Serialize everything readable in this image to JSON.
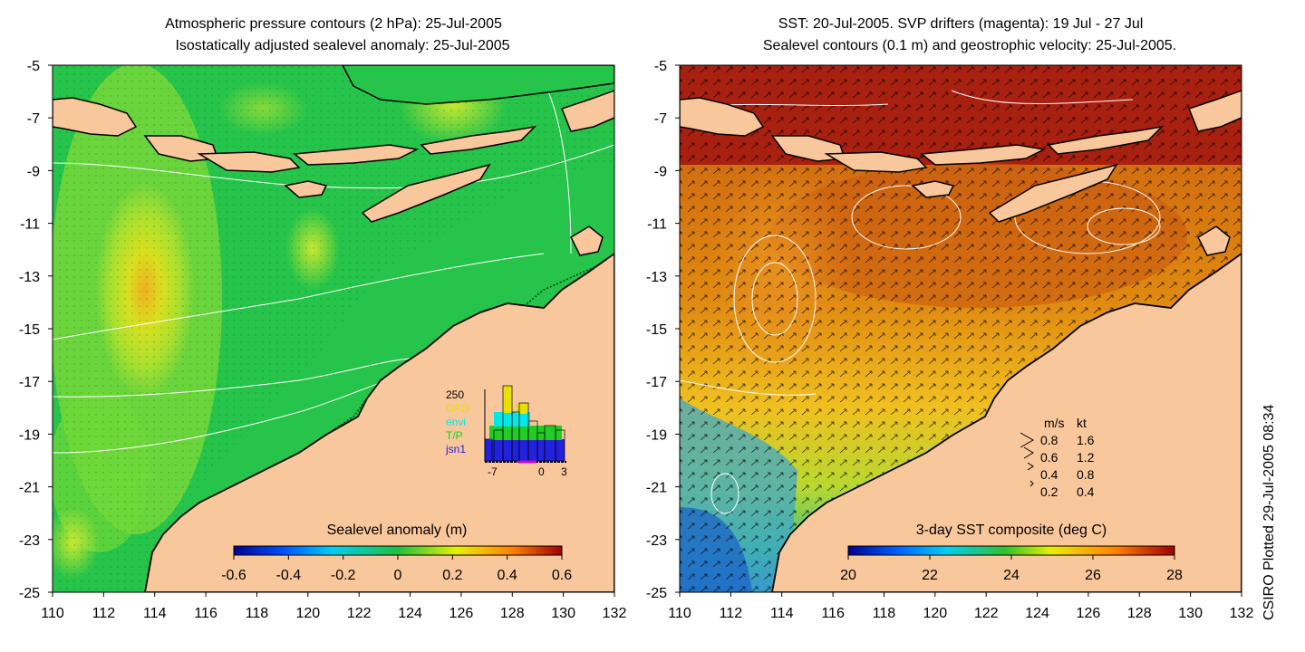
{
  "left_panel": {
    "title_line1": "Atmospheric pressure contours (2 hPa): 25-Jul-2005",
    "title_line2": "Isostatically adjusted sealevel anomaly: 25-Jul-2005",
    "colorbar": {
      "label": "Sealevel anomaly (m)",
      "ticks": [
        "-0.6",
        "-0.4",
        "-0.2",
        "0",
        "0.2",
        "0.4",
        "0.6"
      ]
    },
    "inset": {
      "ymax_label": "250",
      "satellites": [
        {
          "name": "GFO",
          "color": "#e8e000"
        },
        {
          "name": "envi",
          "color": "#00e8e8"
        },
        {
          "name": "T/P",
          "color": "#22cc22"
        },
        {
          "name": "jsn1",
          "color": "#2222dd"
        }
      ],
      "x_ticks": [
        "-7",
        "0",
        "3"
      ]
    }
  },
  "right_panel": {
    "title_line1": "SST: 20-Jul-2005. SVP drifters (magenta): 19 Jul - 27 Jul",
    "title_line2": "Sealevel contours (0.1 m) and geostrophic velocity: 25-Jul-2005.",
    "colorbar": {
      "label": "3-day SST composite (deg C)",
      "ticks": [
        "20",
        "22",
        "24",
        "26",
        "28"
      ]
    },
    "velocity_legend": {
      "header_ms": "m/s",
      "header_kt": "kt",
      "rows": [
        {
          "ms": "0.8",
          "kt": "1.6"
        },
        {
          "ms": "0.6",
          "kt": "1.2"
        },
        {
          "ms": "0.4",
          "kt": "0.8"
        },
        {
          "ms": "0.2",
          "kt": "0.4"
        }
      ]
    }
  },
  "axes": {
    "lat_labels": [
      "-5",
      "-7",
      "-9",
      "-11",
      "-13",
      "-15",
      "-17",
      "-19",
      "-21",
      "-23",
      "-25"
    ],
    "lon_labels": [
      "110",
      "112",
      "114",
      "116",
      "118",
      "120",
      "122",
      "124",
      "126",
      "128",
      "130",
      "132"
    ]
  },
  "credit": "CSIRO Plotted 29-Jul-2005 08:34",
  "colors": {
    "land": "#f9c79c",
    "ocean_left": "#26c44a",
    "ocean_right": "#d06a10"
  }
}
